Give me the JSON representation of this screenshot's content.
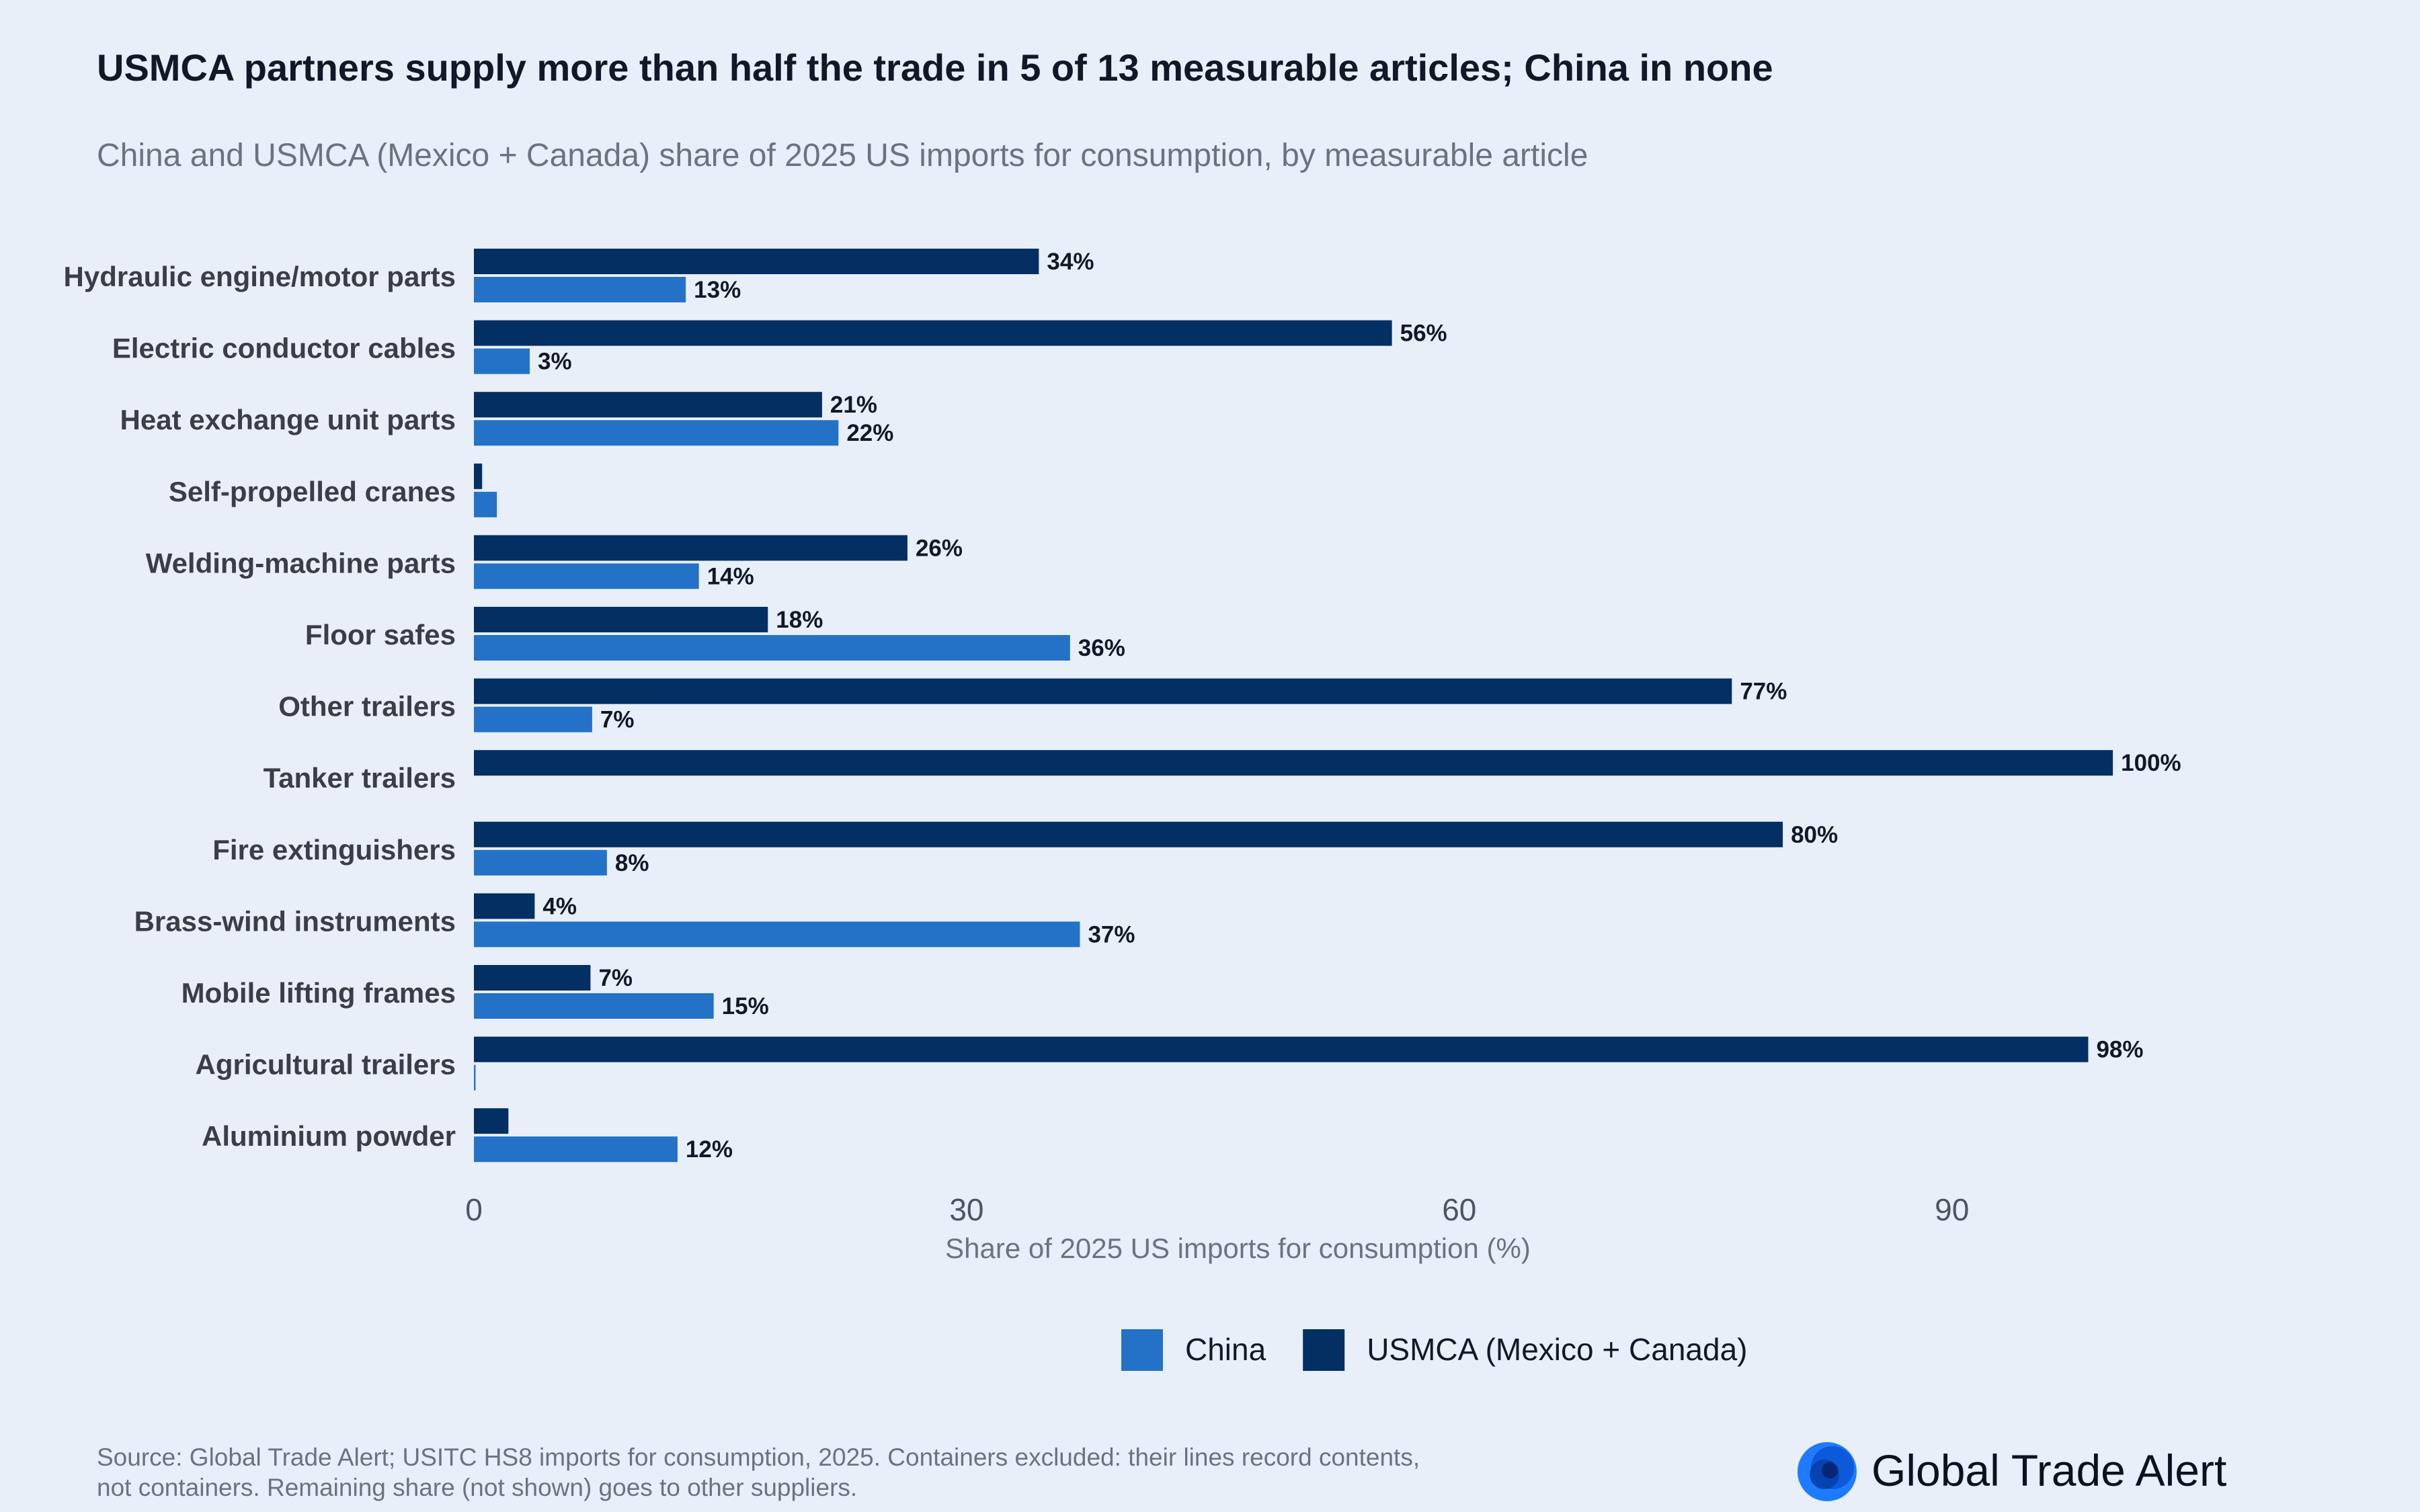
{
  "title": "USMCA partners supply more than half the trade in 5 of 13 measurable articles; China in none",
  "subtitle": "China and USMCA (Mexico + Canada) share of 2025 US imports for consumption, by measurable article",
  "source": "Source: Global Trade Alert; USITC HS8 imports for consumption, 2025. Containers excluded: their lines record contents, not containers. Remaining share (not shown) goes to other suppliers.",
  "brand": {
    "name": "Global Trade Alert",
    "icon": "globe-logo-icon"
  },
  "colors": {
    "china": "#2472C8",
    "usmca": "#032F62",
    "background": "#E9EFF8"
  },
  "chart_data": {
    "type": "bar",
    "orientation": "horizontal",
    "categories": [
      "Hydraulic engine/motor parts",
      "Electric conductor cables",
      "Heat exchange unit parts",
      "Self-propelled cranes",
      "Welding-machine parts",
      "Floor safes",
      "Other trailers",
      "Tanker trailers",
      "Fire extinguishers",
      "Brass-wind instruments",
      "Mobile lifting frames",
      "Agricultural trailers",
      "Aluminium powder"
    ],
    "series": [
      {
        "name": "USMCA (Mexico + Canada)",
        "values": [
          34.4,
          55.9,
          21.2,
          0.5,
          26.4,
          17.9,
          76.6,
          99.8,
          79.7,
          3.7,
          7.1,
          98.3,
          2.1
        ],
        "labels": [
          "34%",
          "56%",
          "21%",
          "",
          "26%",
          "18%",
          "77%",
          "100%",
          "80%",
          "4%",
          "7%",
          "98%",
          ""
        ]
      },
      {
        "name": "China",
        "values": [
          12.9,
          3.4,
          22.2,
          1.4,
          13.7,
          36.3,
          7.2,
          0,
          8.1,
          36.9,
          14.6,
          0.1,
          12.4
        ],
        "labels": [
          "13%",
          "3%",
          "22%",
          "",
          "14%",
          "36%",
          "7%",
          "",
          "8%",
          "37%",
          "15%",
          "",
          "12%"
        ]
      }
    ],
    "xlabel": "Share of 2025 US imports for consumption (%)",
    "ylabel": "",
    "xlim": [
      0,
      100
    ],
    "xticks": [
      0,
      30,
      60,
      90
    ],
    "grid": false,
    "legend": {
      "position": "bottom-center",
      "order": [
        "China",
        "USMCA (Mexico + Canada)"
      ]
    }
  }
}
